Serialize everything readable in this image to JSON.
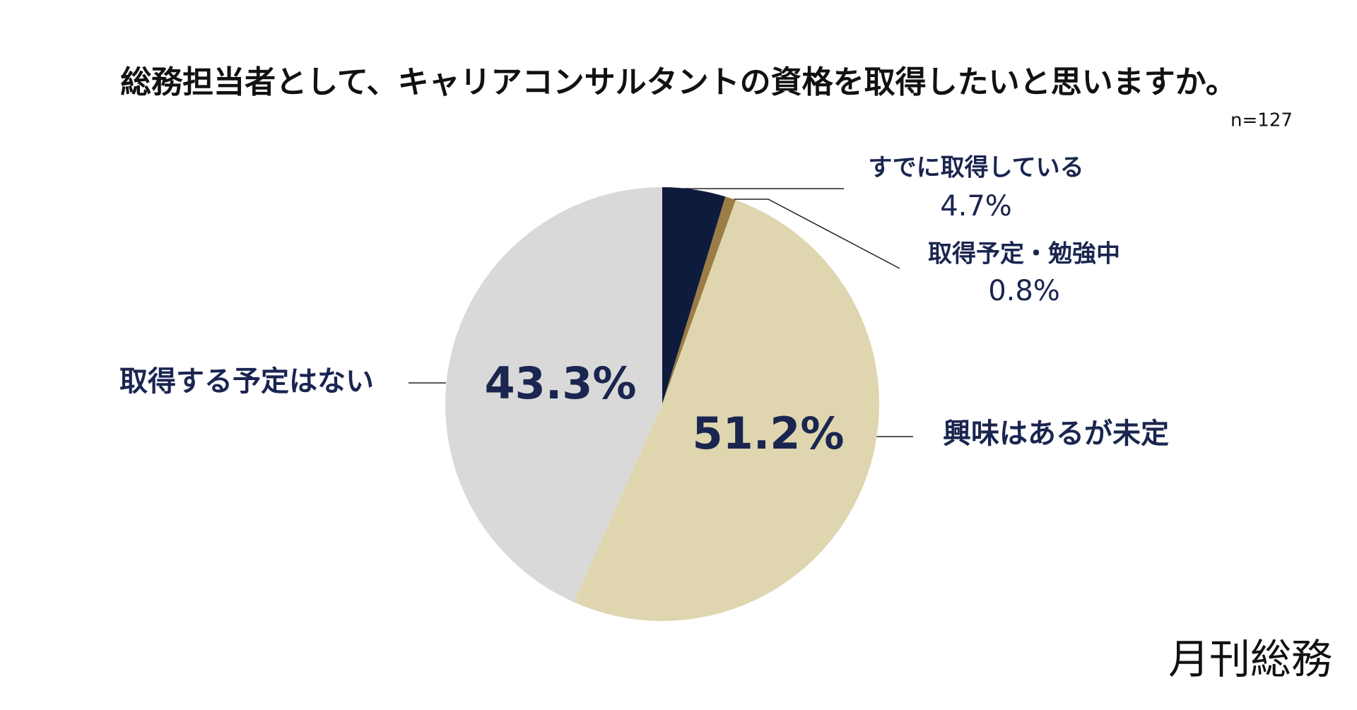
{
  "chart_data": {
    "type": "pie",
    "title": "総務担当者として、キャリアコンサルタントの資格を取得したいと思いますか。",
    "subtitle": "n=127",
    "source": "月刊総務",
    "categories": [
      "すでに取得している",
      "取得予定・勉強中",
      "興味はあるが未定",
      "取得する予定はない"
    ],
    "values": [
      4.7,
      0.8,
      51.2,
      43.3
    ],
    "value_labels": [
      "4.7%",
      "0.8%",
      "51.2%",
      "43.3%"
    ],
    "colors": [
      "#0f1b3d",
      "#9b7d45",
      "#dfd6b0",
      "#d9d9d9"
    ]
  }
}
